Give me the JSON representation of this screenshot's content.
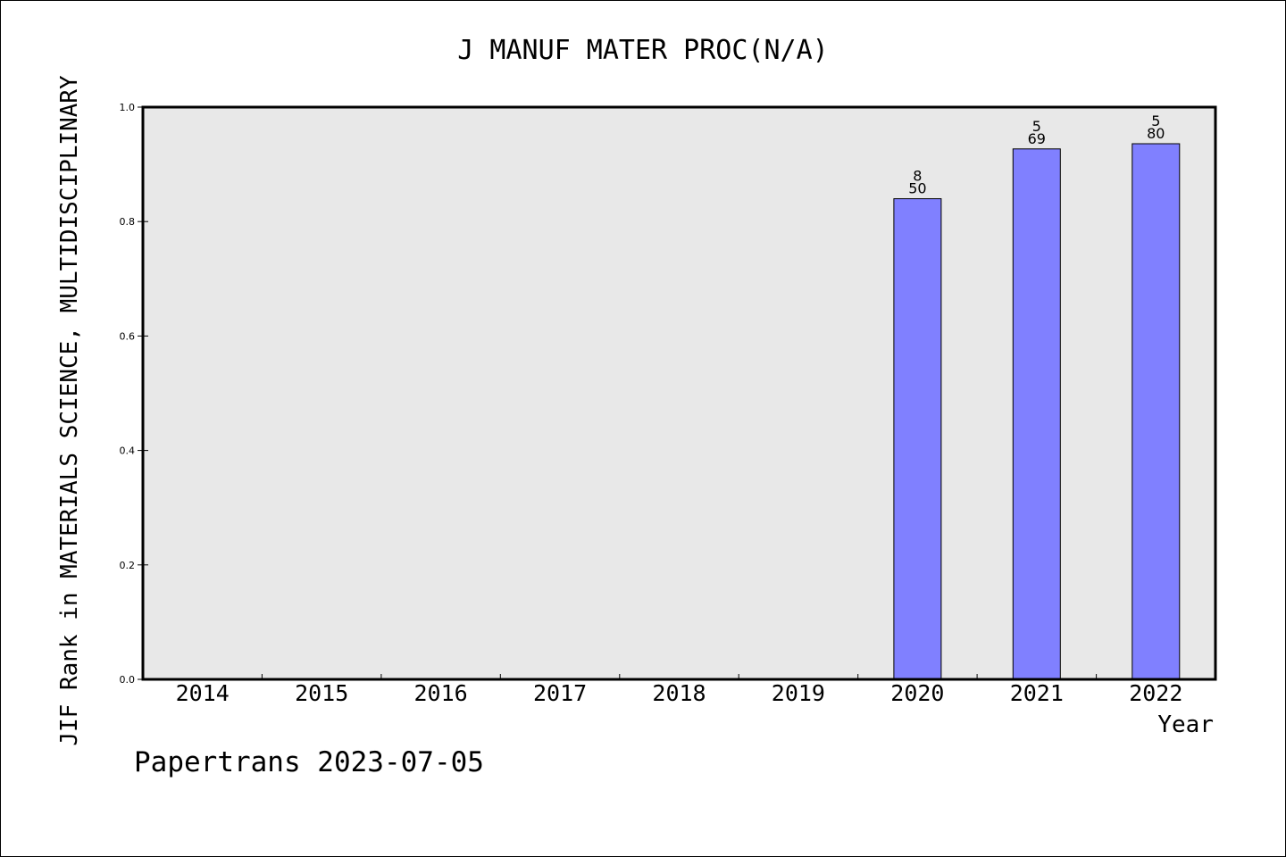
{
  "chart_data": {
    "type": "bar",
    "title": "J MANUF MATER PROC(N/A)",
    "xlabel": "Year",
    "ylabel": "JIF Rank in MATERIALS SCIENCE, MULTIDISCIPLINARY",
    "footer": "Papertrans 2023-07-05",
    "categories": [
      "2014",
      "2015",
      "2016",
      "2017",
      "2018",
      "2019",
      "2020",
      "2021",
      "2022"
    ],
    "values": [
      null,
      null,
      null,
      null,
      null,
      null,
      0.84,
      0.927,
      0.936
    ],
    "bar_labels": [
      null,
      null,
      null,
      null,
      null,
      null,
      {
        "top": "8",
        "bottom": "50"
      },
      {
        "top": "5",
        "bottom": "69"
      },
      {
        "top": "5",
        "bottom": "80"
      }
    ],
    "ylim": [
      0,
      1.0
    ],
    "yticks": [
      "0.0",
      "0.2",
      "0.4",
      "0.6",
      "0.8",
      "1.0"
    ],
    "grid": false,
    "colors": {
      "bar": "#8080ff",
      "plot_background": "#e8e8e8",
      "axis": "#000000"
    }
  }
}
